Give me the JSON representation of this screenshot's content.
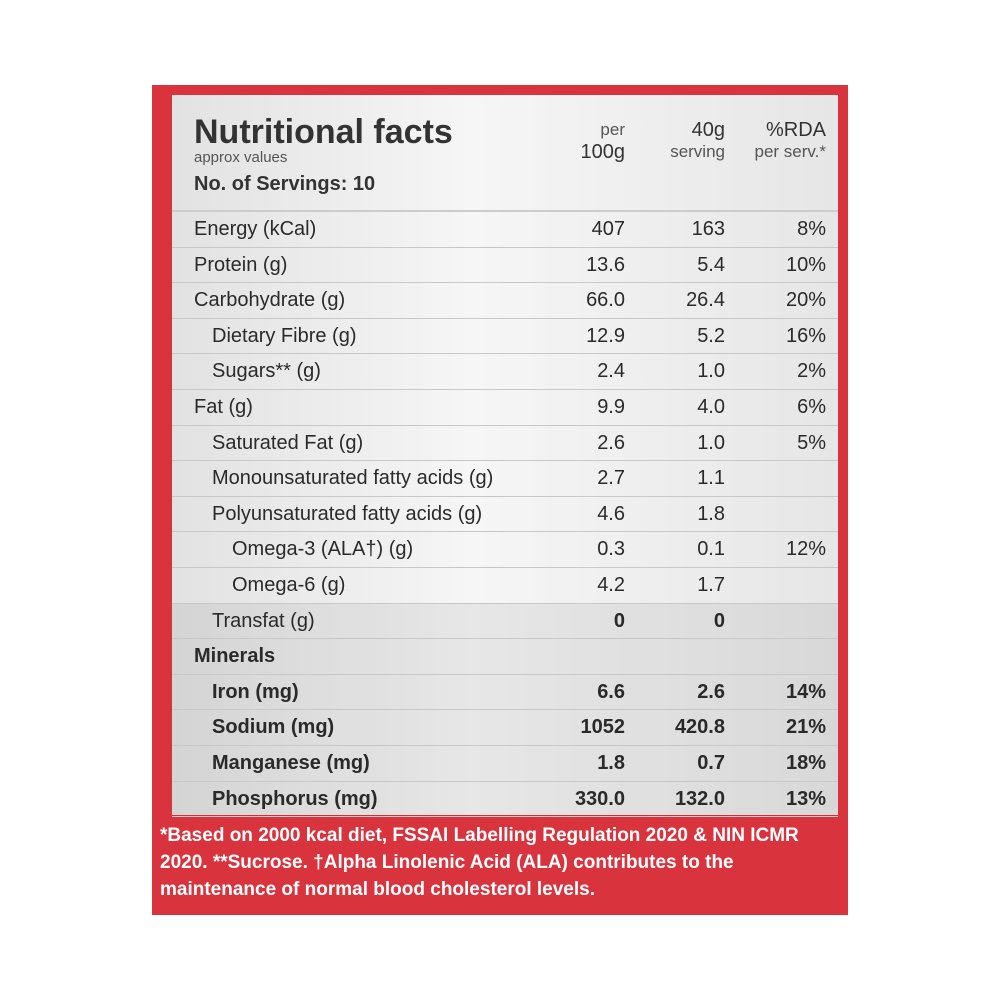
{
  "header": {
    "title": "Nutritional facts",
    "subtitle": "approx values",
    "servings": "No. of Servings: 10",
    "columns": [
      [
        "per",
        "100g"
      ],
      [
        "40g",
        "serving"
      ],
      [
        "%RDA",
        "per serv.*"
      ]
    ]
  },
  "table": {
    "rows": [
      {
        "label": "Energy (kCal)",
        "per_100g": "407",
        "per_serving": "163",
        "rda": "8%"
      },
      {
        "label": "Protein (g)",
        "per_100g": "13.6",
        "per_serving": "5.4",
        "rda": "10%"
      },
      {
        "label": "Carbohydrate (g)",
        "per_100g": "66.0",
        "per_serving": "26.4",
        "rda": "20%"
      },
      {
        "label": "Dietary Fibre (g)",
        "per_100g": "12.9",
        "per_serving": "5.2",
        "rda": "16%"
      },
      {
        "label": "Sugars** (g)",
        "per_100g": "2.4",
        "per_serving": "1.0",
        "rda": "2%"
      },
      {
        "label": "Fat (g)",
        "per_100g": "9.9",
        "per_serving": "4.0",
        "rda": "6%"
      },
      {
        "label": "Saturated Fat (g)",
        "per_100g": "2.6",
        "per_serving": "1.0",
        "rda": "5%"
      },
      {
        "label": "Monounsaturated fatty acids (g)",
        "per_100g": "2.7",
        "per_serving": "1.1"
      },
      {
        "label": "Polyunsaturated fatty acids (g)",
        "per_100g": "4.6",
        "per_serving": "1.8"
      },
      {
        "label": "Omega-3 (ALA†) (g)",
        "per_100g": "0.3",
        "per_serving": "0.1",
        "rda": "12%"
      },
      {
        "label": "Omega-6 (g)",
        "per_100g": "4.2",
        "per_serving": "1.7"
      },
      {
        "label": "Transfat (g)",
        "per_100g": "0",
        "per_serving": "0"
      },
      {
        "label": "Minerals"
      },
      {
        "label": "Iron (mg)",
        "per_100g": "6.6",
        "per_serving": "2.6",
        "rda": "14%"
      },
      {
        "label": "Sodium (mg)",
        "per_100g": "1052",
        "per_serving": "420.8",
        "rda": "21%"
      },
      {
        "label": "Manganese (mg)",
        "per_100g": "1.8",
        "per_serving": "0.7",
        "rda": "18%"
      },
      {
        "label": "Phosphorus (mg)",
        "per_100g": "330.0",
        "per_serving": "132.0",
        "rda": "13%"
      }
    ]
  },
  "footnote": "*Based on 2000 kcal diet, FSSAI Labelling Regulation 2020 & NIN ICMR 2020. **Sucrose. †Alpha Linolenic Acid (ALA) contributes to the maintenance of normal blood cholesterol levels."
}
